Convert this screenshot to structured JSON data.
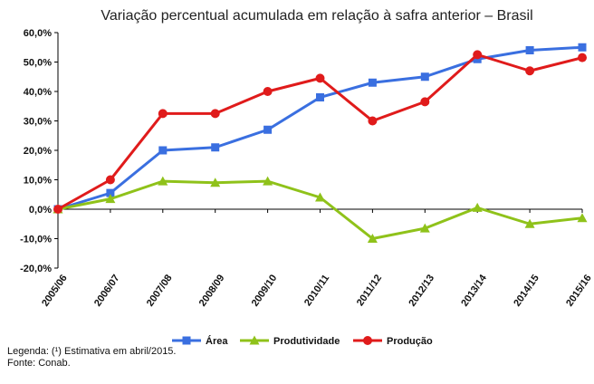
{
  "chart_data": {
    "type": "line",
    "title": "Variação percentual acumulada em relação à safra anterior – Brasil",
    "categories": [
      "2005/06",
      "2006/07",
      "2007/08",
      "2008/09",
      "2009/10",
      "2010/11",
      "2011/12",
      "2012/13",
      "2013/14",
      "2014/15",
      "2015/16"
    ],
    "yticks": [
      "60,0%",
      "50,0%",
      "40,0%",
      "30,0%",
      "20,0%",
      "10,0%",
      "0,0%",
      "-10,0%",
      "-20,0%"
    ],
    "ylim": [
      -20,
      60
    ],
    "grid": false,
    "legend_position": "bottom",
    "series": [
      {
        "name": "Área",
        "color": "#3a6fe0",
        "marker": "square",
        "values": [
          0,
          5.5,
          20,
          21,
          27,
          38,
          43,
          45,
          51,
          54,
          55
        ]
      },
      {
        "name": "Produtividade",
        "color": "#8fc21a",
        "marker": "triangle",
        "values": [
          0,
          3.5,
          9.5,
          9,
          9.5,
          4,
          -10,
          -6.5,
          0.5,
          -5,
          -3
        ]
      },
      {
        "name": "Produção",
        "color": "#e01b1b",
        "marker": "circle",
        "values": [
          0,
          10,
          32.5,
          32.5,
          40,
          44.5,
          30,
          36.5,
          52.5,
          47,
          51.5
        ]
      }
    ]
  },
  "footnote": {
    "legend_note": "Legenda: (¹) Estimativa em abril/2015.",
    "source": "Fonte: Conab."
  }
}
